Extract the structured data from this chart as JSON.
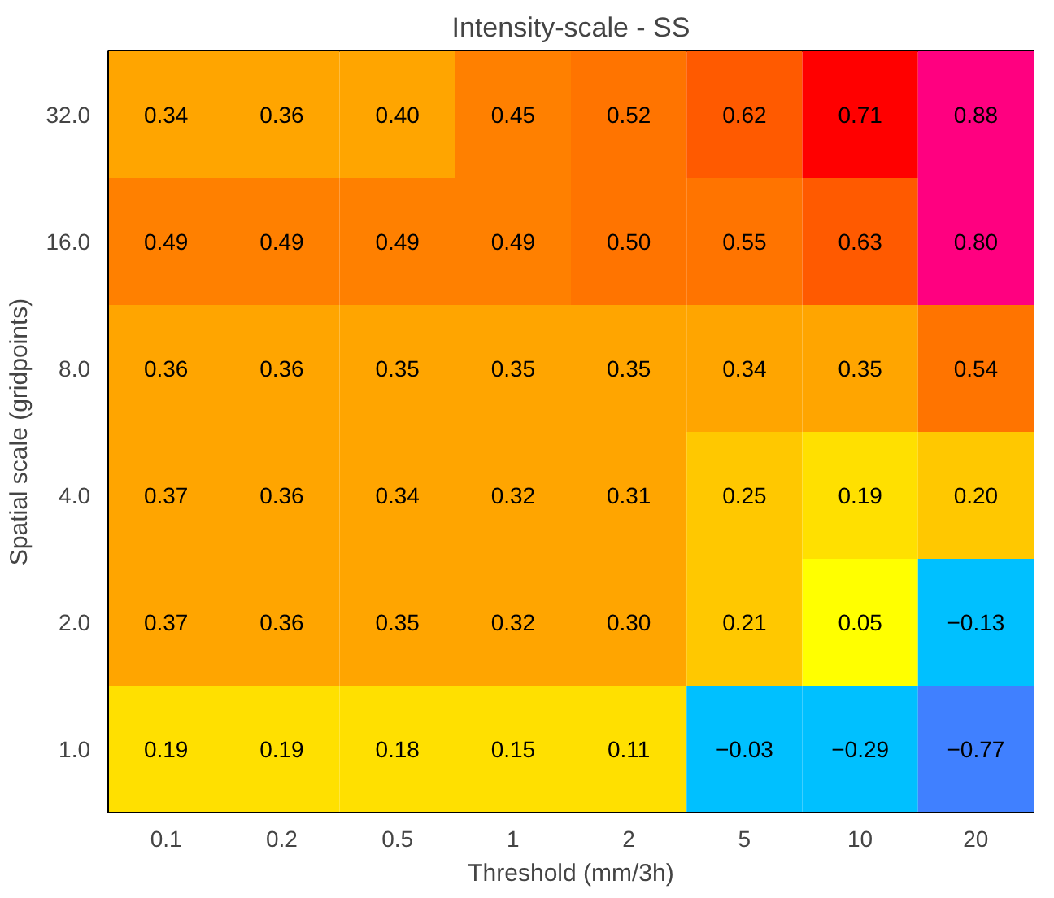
{
  "chart_data": {
    "type": "heatmap",
    "title": "Intensity-scale - SS",
    "xlabel": "Threshold (mm/3h)",
    "ylabel": "Spatial scale (gridpoints)",
    "categories": [
      "0.1",
      "0.2",
      "0.5",
      "1",
      "2",
      "5",
      "10",
      "20"
    ],
    "data_labels": true,
    "cell_labels": [
      [
        "0.34",
        "0.36",
        "0.40",
        "0.45",
        "0.52",
        "0.62",
        "0.71",
        "0.88"
      ],
      [
        "0.49",
        "0.49",
        "0.49",
        "0.49",
        "0.50",
        "0.55",
        "0.63",
        "0.80"
      ],
      [
        "0.36",
        "0.36",
        "0.35",
        "0.35",
        "0.35",
        "0.34",
        "0.35",
        "0.54"
      ],
      [
        "0.37",
        "0.36",
        "0.34",
        "0.32",
        "0.31",
        "0.25",
        "0.19",
        "0.20"
      ],
      [
        "0.37",
        "0.36",
        "0.35",
        "0.32",
        "0.30",
        "0.21",
        "0.05",
        "−0.13"
      ],
      [
        "0.19",
        "0.19",
        "0.18",
        "0.15",
        "0.11",
        "−0.03",
        "−0.29",
        "−0.77"
      ]
    ],
    "y_categories": [
      "32.0",
      "16.0",
      "8.0",
      "4.0",
      "2.0",
      "1.0"
    ],
    "cells": [
      [
        0.34,
        0.36,
        0.4,
        0.45,
        0.52,
        0.62,
        0.71,
        0.88
      ],
      [
        0.49,
        0.49,
        0.49,
        0.49,
        0.5,
        0.55,
        0.63,
        0.8
      ],
      [
        0.36,
        0.36,
        0.35,
        0.35,
        0.35,
        0.34,
        0.35,
        0.54
      ],
      [
        0.37,
        0.36,
        0.34,
        0.32,
        0.31,
        0.25,
        0.19,
        0.2
      ],
      [
        0.37,
        0.36,
        0.35,
        0.32,
        0.3,
        0.21,
        0.05,
        -0.13
      ],
      [
        0.19,
        0.19,
        0.18,
        0.15,
        0.11,
        -0.03,
        -0.29,
        -0.77
      ]
    ],
    "grid": false
  }
}
